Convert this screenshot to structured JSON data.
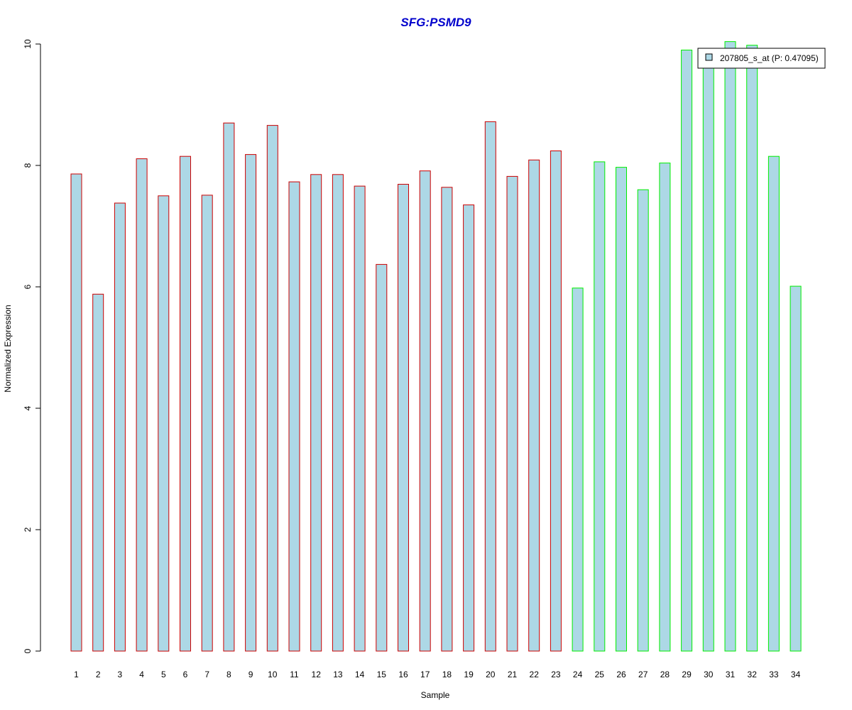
{
  "chart_data": {
    "type": "bar",
    "title": "SFG:PSMD9",
    "xlabel": "Sample",
    "ylabel": "Normalized Expression",
    "ylim": [
      0,
      10
    ],
    "yticks": [
      "0",
      "2",
      "4",
      "6",
      "8",
      "10"
    ],
    "categories": [
      "1",
      "2",
      "3",
      "4",
      "5",
      "6",
      "7",
      "8",
      "9",
      "10",
      "11",
      "12",
      "13",
      "14",
      "15",
      "16",
      "17",
      "18",
      "19",
      "20",
      "21",
      "22",
      "23",
      "24",
      "25",
      "26",
      "27",
      "28",
      "29",
      "30",
      "31",
      "32",
      "33",
      "34"
    ],
    "series": [
      {
        "name": "207805_s_at (P: 0.47095)",
        "values": [
          7.86,
          5.88,
          7.38,
          8.11,
          7.5,
          8.15,
          7.51,
          8.7,
          8.18,
          8.66,
          7.73,
          7.85,
          7.85,
          7.66,
          6.37,
          7.69,
          7.91,
          7.64,
          7.35,
          8.72,
          7.82,
          8.09,
          8.24,
          5.98,
          8.06,
          7.97,
          7.6,
          8.04,
          9.9,
          9.7,
          10.04,
          9.98,
          8.15,
          6.01
        ]
      }
    ],
    "groups": [
      {
        "from": 1,
        "to": 23,
        "border_color": "#cc0000"
      },
      {
        "from": 24,
        "to": 34,
        "border_color": "#00ee00"
      }
    ],
    "bar_fill": "#add8e6",
    "title_color": "#0000cc",
    "legend_position": "top-right"
  }
}
